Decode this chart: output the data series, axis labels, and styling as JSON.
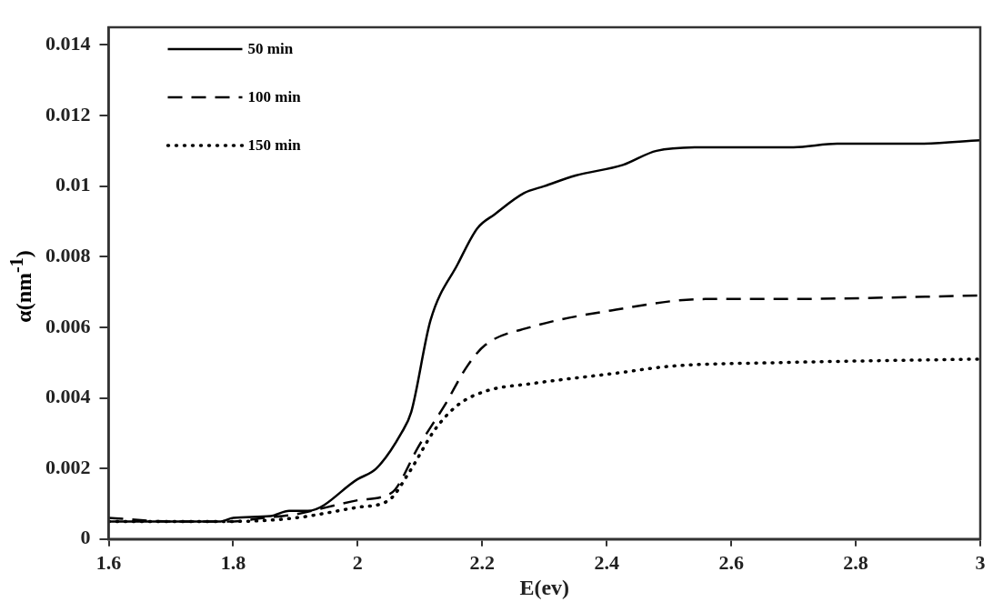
{
  "chart_data": {
    "type": "line",
    "xlabel": "E(ev)",
    "ylabel": "α(nm$^{-1}$)",
    "xlim": [
      1.6,
      3
    ],
    "xticks": [
      1.6,
      1.8,
      2,
      2.2,
      2.4,
      2.6,
      2.8,
      3
    ],
    "ylim": [
      0,
      0.0145
    ],
    "yticks": [
      0,
      0.002,
      0.004,
      0.006,
      0.008,
      0.01,
      0.012,
      0.014
    ],
    "grid": false,
    "legend": "top left",
    "marker": "none",
    "series": [
      {
        "name": "50 min",
        "color": "#000000",
        "line_style": "solid",
        "x": [
          1.6,
          1.7,
          1.78,
          1.8,
          1.86,
          1.89,
          1.92,
          2,
          2.03,
          2.07,
          2.086,
          2.117,
          2.161,
          2.192,
          2.22,
          2.267,
          2.3,
          2.35,
          2.426,
          2.48,
          2.558,
          2.7,
          2.77,
          2.9,
          3
        ],
        "values": [
          0.0005,
          0.0005,
          0.0005,
          0.0006,
          0.00065,
          0.0008,
          0.0008,
          0.0017,
          0.002,
          0.003,
          0.0036,
          0.0062,
          0.0078,
          0.0088,
          0.0092,
          0.0098,
          0.01,
          0.0103,
          0.0106,
          0.011,
          0.0111,
          0.0111,
          0.0112,
          0.0112,
          0.0113
        ]
      },
      {
        "name": "100 min",
        "color": "#000000",
        "line_style": "dashed",
        "x": [
          1.6,
          1.7,
          1.8,
          1.85,
          1.9,
          1.95,
          2,
          2.04,
          2.06,
          2.097,
          2.14,
          2.176,
          2.205,
          2.277,
          2.415,
          2.558,
          2.68,
          3
        ],
        "values": [
          0.0006,
          0.0005,
          0.0005,
          0.0006,
          0.0007,
          0.0009,
          0.0011,
          0.0012,
          0.0014,
          0.0026,
          0.0038,
          0.0049,
          0.0055,
          0.006,
          0.0065,
          0.0068,
          0.0068,
          0.0069
        ]
      },
      {
        "name": "150 min",
        "color": "#000000",
        "line_style": "dotted",
        "x": [
          1.6,
          1.7,
          1.8,
          1.9,
          2,
          2.05,
          2.083,
          2.124,
          2.161,
          2.207,
          2.277,
          2.415,
          2.504,
          2.68,
          3
        ],
        "values": [
          0.0005,
          0.0005,
          0.0005,
          0.0006,
          0.0009,
          0.0011,
          0.0019,
          0.0031,
          0.0038,
          0.0042,
          0.0044,
          0.0047,
          0.0049,
          0.005,
          0.0051
        ]
      }
    ]
  }
}
